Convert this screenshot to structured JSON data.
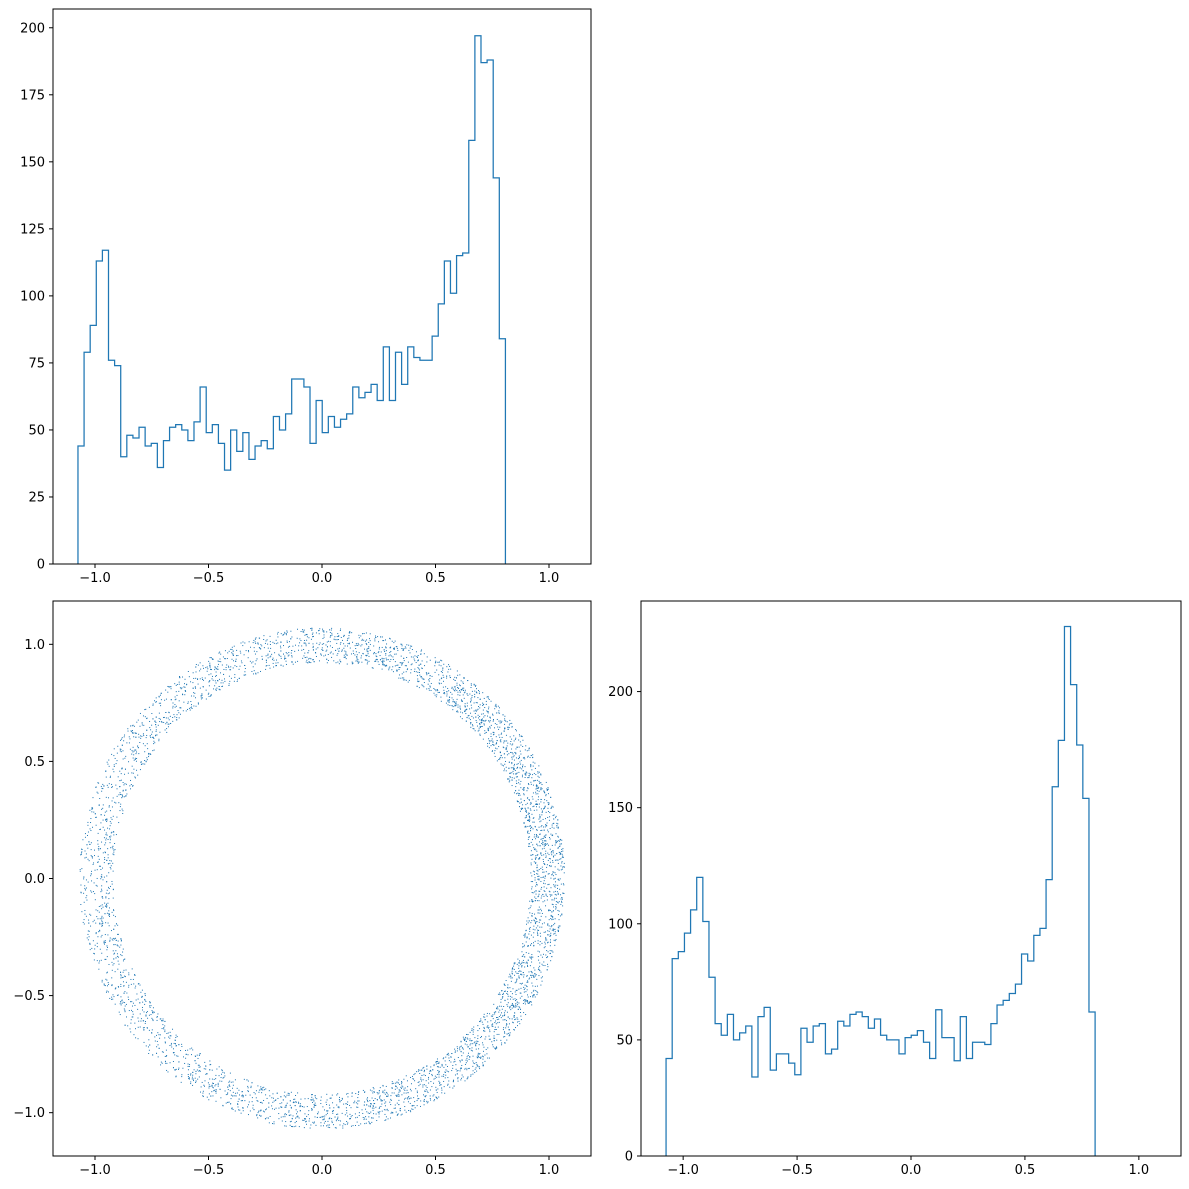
{
  "colors": {
    "series": "#1f77b4",
    "axes": "#000000",
    "background": "#ffffff"
  },
  "chart_data": [
    {
      "id": "hist-x",
      "type": "histogram",
      "title": "",
      "xlabel": "",
      "ylabel": "",
      "xlim": [
        -1.185,
        1.185
      ],
      "ylim": [
        0,
        207
      ],
      "grid": false,
      "xticks": [
        -1.0,
        -0.5,
        0.0,
        0.5,
        1.0
      ],
      "xtick_labels": [
        "−1.0",
        "−0.5",
        "0.0",
        "0.5",
        "1.0"
      ],
      "yticks": [
        0,
        25,
        50,
        75,
        100,
        125,
        150,
        175,
        200
      ],
      "ytick_labels": [
        "0",
        "25",
        "50",
        "75",
        "100",
        "125",
        "150",
        "175",
        "200"
      ],
      "bin_start": -1.075,
      "bin_width": 0.0269,
      "counts": [
        44,
        79,
        89,
        113,
        117,
        76,
        74,
        40,
        48,
        47,
        51,
        44,
        45,
        36,
        46,
        51,
        52,
        50,
        46,
        53,
        66,
        49,
        52,
        45,
        35,
        50,
        42,
        49,
        39,
        44,
        46,
        43,
        55,
        50,
        56,
        69,
        69,
        66,
        45,
        61,
        49,
        55,
        51,
        54,
        56,
        66,
        62,
        64,
        67,
        61,
        81,
        61,
        79,
        67,
        81,
        77,
        76,
        76,
        85,
        97,
        113,
        101,
        115,
        116,
        158,
        197,
        187,
        188,
        144,
        84
      ]
    },
    {
      "id": "scatter-xy",
      "type": "scatter",
      "title": "",
      "xlabel": "",
      "ylabel": "",
      "xlim": [
        -1.185,
        1.185
      ],
      "ylim": [
        -1.185,
        1.185
      ],
      "grid": false,
      "xticks": [
        -1.0,
        -0.5,
        0.0,
        0.5,
        1.0
      ],
      "xtick_labels": [
        "−1.0",
        "−0.5",
        "0.0",
        "0.5",
        "1.0"
      ],
      "yticks": [
        -1.0,
        -0.5,
        0.0,
        0.5,
        1.0
      ],
      "ytick_labels": [
        "−1.0",
        "−0.5",
        "0.0",
        "0.5",
        "1.0"
      ],
      "distribution": {
        "shape": "ring",
        "inner_radius": 0.92,
        "outer_radius": 1.07,
        "point_count": 5000,
        "denser_side": "right"
      }
    },
    {
      "id": "hist-y",
      "type": "histogram",
      "title": "",
      "xlabel": "",
      "ylabel": "",
      "xlim": [
        -1.185,
        1.185
      ],
      "ylim": [
        0,
        239
      ],
      "grid": false,
      "xticks": [
        -1.0,
        -0.5,
        0.0,
        0.5,
        1.0
      ],
      "xtick_labels": [
        "−1.0",
        "−0.5",
        "0.0",
        "0.5",
        "1.0"
      ],
      "yticks": [
        0,
        50,
        100,
        150,
        200
      ],
      "ytick_labels": [
        "0",
        "50",
        "100",
        "150",
        "200"
      ],
      "bin_start": -1.075,
      "bin_width": 0.0269,
      "counts": [
        42,
        85,
        88,
        96,
        106,
        120,
        101,
        77,
        57,
        52,
        61,
        50,
        53,
        56,
        34,
        60,
        64,
        37,
        44,
        44,
        40,
        35,
        55,
        49,
        56,
        57,
        44,
        46,
        58,
        56,
        61,
        62,
        60,
        55,
        59,
        52,
        50,
        50,
        44,
        51,
        52,
        54,
        49,
        42,
        63,
        51,
        51,
        41,
        60,
        42,
        49,
        49,
        48,
        57,
        65,
        67,
        70,
        74,
        87,
        84,
        95,
        98,
        119,
        159,
        179,
        228,
        203,
        177,
        154,
        62
      ]
    }
  ]
}
